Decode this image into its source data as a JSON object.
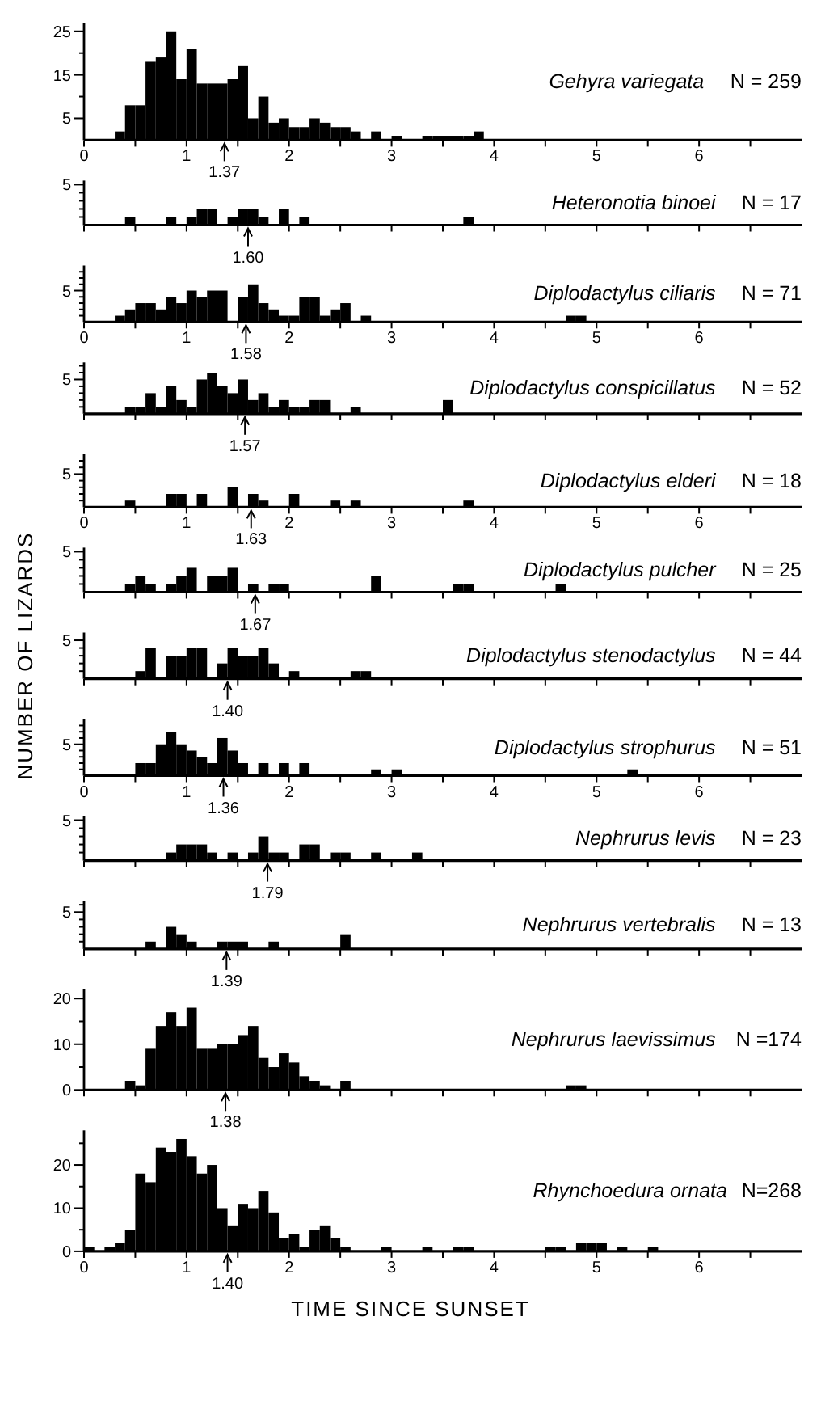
{
  "chart_data": [
    {
      "type": "histogram",
      "title": "Gehyra variegata",
      "subtitle": "N = 259",
      "color": "#000000",
      "bins": [
        0,
        0.1,
        0.2,
        0.3,
        0.4,
        0.5,
        0.6,
        0.7,
        0.8,
        0.9,
        1,
        1.1,
        1.2,
        1.3,
        1.4,
        1.5,
        1.6,
        1.7,
        1.8,
        1.9,
        2,
        2.1,
        2.2,
        2.3,
        2.4,
        2.5,
        2.6,
        2.7,
        2.8,
        2.9,
        3,
        3.1,
        3.2,
        3.3,
        3.4,
        3.5,
        3.6,
        3.7,
        3.8,
        3.9,
        4,
        4.1,
        4.2,
        4.3,
        4.4,
        4.5,
        4.6,
        4.7,
        4.8,
        4.9,
        5,
        5.1,
        5.2,
        5.3,
        5.4,
        5.5,
        5.6,
        5.7,
        5.8,
        5.9,
        6
      ],
      "values": [
        0,
        0,
        0,
        2,
        8,
        8,
        18,
        19,
        25,
        14,
        21,
        13,
        13,
        13,
        14,
        17,
        5,
        10,
        4,
        5,
        3,
        3,
        5,
        4,
        3,
        3,
        2,
        0,
        2,
        0,
        1,
        0,
        0,
        1,
        1,
        1,
        1,
        1,
        2,
        0,
        0,
        0,
        0,
        0,
        0,
        0,
        0,
        0,
        0,
        0,
        0,
        0,
        0,
        0,
        0,
        0,
        0,
        0,
        0,
        0
      ],
      "xlim": [
        0,
        7
      ],
      "xticks": [
        0,
        {
          "value": 0.5,
          "label": null
        },
        1,
        {
          "value": 1.5,
          "label": null
        },
        2,
        {
          "value": 2.5,
          "label": null
        },
        3,
        {
          "value": 3.5,
          "label": null
        },
        4,
        {
          "value": 4.5,
          "label": null
        },
        5,
        {
          "value": 5.5,
          "label": null
        },
        6,
        {
          "value": 6.5,
          "label": null
        }
      ],
      "ylim": [
        0,
        27
      ],
      "yticks": [
        5,
        {
          "value": 10,
          "label": null
        },
        15,
        {
          "value": 20,
          "label": null
        },
        25
      ],
      "annotations": [
        {
          "text": "1.37",
          "x": 1.37,
          "y": 0
        }
      ]
    },
    {
      "type": "bar",
      "title": "Heteronotia binoei",
      "subtitle": "N = 17",
      "color": "#000000",
      "x": [
        0.05,
        0.15,
        0.25,
        0.35,
        0.45,
        0.55,
        0.65,
        0.75,
        0.85,
        0.95,
        1.05,
        1.15,
        1.25,
        1.35,
        1.45,
        1.55,
        1.65,
        1.75,
        1.85,
        1.95,
        2.05,
        2.15,
        2.25,
        2.35,
        2.45,
        2.55,
        2.65,
        2.75,
        2.85,
        2.95,
        3.05,
        3.15,
        3.25,
        3.35,
        3.45,
        3.55,
        3.65,
        3.75,
        3.85,
        3.95,
        4.05,
        4.15,
        4.25,
        4.35,
        4.45,
        4.55,
        4.65,
        4.75,
        4.85,
        4.95,
        5.05,
        5.15,
        5.25,
        5.35,
        5.45,
        5.55,
        5.65,
        5.75,
        5.85,
        5.95
      ],
      "values": [
        0,
        0,
        0,
        0,
        1,
        0,
        0,
        0,
        1,
        0,
        1,
        2,
        2,
        0,
        1,
        2,
        2,
        1,
        0,
        2,
        0,
        1,
        0,
        0,
        0,
        0,
        0,
        0,
        0,
        0,
        0,
        0,
        0,
        0,
        0,
        0,
        0,
        1,
        0,
        0,
        0,
        0,
        0,
        0,
        0,
        0,
        0,
        0,
        0,
        0,
        0,
        0,
        0,
        0,
        0,
        0,
        0,
        0,
        0,
        0
      ],
      "xlim": [
        0,
        7
      ],
      "xticks": [
        0,
        {
          "value": 0.5,
          "label": null
        },
        1,
        {
          "value": 1.5,
          "label": null
        },
        2,
        {
          "value": 2.5,
          "label": null
        },
        3,
        {
          "value": 3.5,
          "label": null
        },
        4,
        {
          "value": 4.5,
          "label": null
        },
        5,
        {
          "value": 5.5,
          "label": null
        },
        6,
        {
          "value": 6.5,
          "label": null
        }
      ],
      "ylim": [
        0,
        5.5
      ],
      "yticks": [
        {
          "value": 1,
          "label": null
        },
        {
          "value": 2,
          "label": null
        },
        {
          "value": 3,
          "label": null
        },
        {
          "value": 4,
          "label": null
        },
        5
      ],
      "tick_labels": "y",
      "annotations": [
        {
          "text": "1.60",
          "x": 1.6,
          "y": 0
        }
      ]
    },
    {
      "type": "bar",
      "title": "Diplodactylus ciliaris",
      "subtitle": "N = 71",
      "color": "#000000",
      "x": [
        0.05,
        0.15,
        0.25,
        0.35,
        0.45,
        0.55,
        0.65,
        0.75,
        0.85,
        0.95,
        1.05,
        1.15,
        1.25,
        1.35,
        1.45,
        1.55,
        1.65,
        1.75,
        1.85,
        1.95,
        2.05,
        2.15,
        2.25,
        2.35,
        2.45,
        2.55,
        2.65,
        2.75,
        2.85,
        2.95,
        3.05,
        3.15,
        3.25,
        3.35,
        3.45,
        3.55,
        3.65,
        3.75,
        3.85,
        3.95,
        4.05,
        4.15,
        4.25,
        4.35,
        4.45,
        4.55,
        4.65,
        4.75,
        4.85,
        4.95,
        5.05,
        5.15,
        5.25,
        5.35,
        5.45,
        5.55,
        5.65,
        5.75,
        5.85,
        5.95
      ],
      "values": [
        0,
        0,
        0,
        1,
        2,
        3,
        3,
        2,
        4,
        3,
        5,
        4,
        5,
        5,
        0,
        4,
        6,
        3,
        2,
        1,
        1,
        4,
        4,
        1,
        2,
        3,
        0,
        1,
        0,
        0,
        0,
        0,
        0,
        0,
        0,
        0,
        0,
        0,
        0,
        0,
        0,
        0,
        0,
        0,
        0,
        0,
        0,
        1,
        1,
        0,
        0,
        0,
        0,
        0,
        0,
        0,
        0,
        0,
        0,
        0
      ],
      "xlim": [
        0,
        7
      ],
      "xticks": [
        0,
        {
          "value": 0.5,
          "label": null
        },
        1,
        {
          "value": 1.5,
          "label": null
        },
        2,
        {
          "value": 2.5,
          "label": null
        },
        3,
        {
          "value": 3.5,
          "label": null
        },
        4,
        {
          "value": 4.5,
          "label": null
        },
        5,
        {
          "value": 5.5,
          "label": null
        },
        6,
        {
          "value": 6.5,
          "label": null
        }
      ],
      "ylim": [
        0,
        9
      ],
      "yticks": [
        {
          "value": 1,
          "label": null
        },
        {
          "value": 2,
          "label": null
        },
        {
          "value": 3,
          "label": null
        },
        {
          "value": 4,
          "label": null
        },
        5,
        {
          "value": 6,
          "label": null
        },
        {
          "value": 7,
          "label": null
        },
        {
          "value": 8,
          "label": null
        }
      ],
      "annotations": [
        {
          "text": "1.58",
          "x": 1.58,
          "y": 0
        }
      ]
    },
    {
      "type": "bar",
      "title": "Diplodactylus conspicillatus",
      "subtitle": "N = 52",
      "color": "#000000",
      "x": [
        0.05,
        0.15,
        0.25,
        0.35,
        0.45,
        0.55,
        0.65,
        0.75,
        0.85,
        0.95,
        1.05,
        1.15,
        1.25,
        1.35,
        1.45,
        1.55,
        1.65,
        1.75,
        1.85,
        1.95,
        2.05,
        2.15,
        2.25,
        2.35,
        2.45,
        2.55,
        2.65,
        2.75,
        2.85,
        2.95,
        3.05,
        3.15,
        3.25,
        3.35,
        3.45,
        3.55,
        3.65,
        3.75,
        3.85,
        3.95,
        4.05,
        4.15,
        4.25,
        4.35,
        4.45,
        4.55,
        4.65,
        4.75,
        4.85,
        4.95,
        5.05,
        5.15,
        5.25,
        5.35,
        5.45,
        5.55,
        5.65,
        5.75,
        5.85,
        5.95
      ],
      "values": [
        0,
        0,
        0,
        0,
        1,
        1,
        3,
        1,
        4,
        2,
        1,
        5,
        6,
        4,
        3,
        5,
        2,
        3,
        1,
        2,
        1,
        1,
        2,
        2,
        0,
        0,
        1,
        0,
        0,
        0,
        0,
        0,
        0,
        0,
        0,
        2,
        0,
        0,
        0,
        0,
        0,
        0,
        0,
        0,
        0,
        0,
        0,
        0,
        0,
        0,
        0,
        0,
        0,
        0,
        0,
        0,
        0,
        0,
        0,
        0
      ],
      "xlim": [
        0,
        7
      ],
      "xticks": [
        0,
        {
          "value": 0.5,
          "label": null
        },
        1,
        {
          "value": 1.5,
          "label": null
        },
        2,
        {
          "value": 2.5,
          "label": null
        },
        3,
        {
          "value": 3.5,
          "label": null
        },
        4,
        {
          "value": 4.5,
          "label": null
        },
        5,
        {
          "value": 5.5,
          "label": null
        },
        6,
        {
          "value": 6.5,
          "label": null
        }
      ],
      "ylim": [
        0,
        7.5
      ],
      "yticks": [
        {
          "value": 1,
          "label": null
        },
        {
          "value": 2,
          "label": null
        },
        {
          "value": 3,
          "label": null
        },
        {
          "value": 4,
          "label": null
        },
        5,
        {
          "value": 6,
          "label": null
        },
        {
          "value": 7,
          "label": null
        }
      ],
      "tick_labels": "y",
      "annotations": [
        {
          "text": "1.57",
          "x": 1.57,
          "y": 0
        }
      ]
    },
    {
      "type": "bar",
      "title": "Diplodactylus elderi",
      "subtitle": "N = 18",
      "color": "#000000",
      "x": [
        0.05,
        0.15,
        0.25,
        0.35,
        0.45,
        0.55,
        0.65,
        0.75,
        0.85,
        0.95,
        1.05,
        1.15,
        1.25,
        1.35,
        1.45,
        1.55,
        1.65,
        1.75,
        1.85,
        1.95,
        2.05,
        2.15,
        2.25,
        2.35,
        2.45,
        2.55,
        2.65,
        2.75,
        2.85,
        2.95,
        3.05,
        3.15,
        3.25,
        3.35,
        3.45,
        3.55,
        3.65,
        3.75,
        3.85,
        3.95,
        4.05,
        4.15,
        4.25,
        4.35,
        4.45,
        4.55,
        4.65,
        4.75,
        4.85,
        4.95,
        5.05,
        5.15,
        5.25,
        5.35,
        5.45,
        5.55,
        5.65,
        5.75,
        5.85,
        5.95
      ],
      "values": [
        0,
        0,
        0,
        0,
        1,
        0,
        0,
        0,
        2,
        2,
        0,
        2,
        0,
        0,
        3,
        0,
        2,
        1,
        0,
        0,
        2,
        0,
        0,
        0,
        1,
        0,
        1,
        0,
        0,
        0,
        0,
        0,
        0,
        0,
        0,
        0,
        0,
        1,
        0,
        0,
        0,
        0,
        0,
        0,
        0,
        0,
        0,
        0,
        0,
        0,
        0,
        0,
        0,
        0,
        0,
        0,
        0,
        0,
        0,
        0
      ],
      "xlim": [
        0,
        7
      ],
      "xticks": [
        0,
        {
          "value": 0.5,
          "label": null
        },
        1,
        {
          "value": 1.5,
          "label": null
        },
        2,
        {
          "value": 2.5,
          "label": null
        },
        3,
        {
          "value": 3.5,
          "label": null
        },
        4,
        {
          "value": 4.5,
          "label": null
        },
        5,
        {
          "value": 5.5,
          "label": null
        },
        6,
        {
          "value": 6.5,
          "label": null
        }
      ],
      "ylim": [
        0,
        8
      ],
      "yticks": [
        {
          "value": 1,
          "label": null
        },
        {
          "value": 2,
          "label": null
        },
        {
          "value": 3,
          "label": null
        },
        {
          "value": 4,
          "label": null
        },
        5,
        {
          "value": 6,
          "label": null
        },
        {
          "value": 7,
          "label": null
        }
      ],
      "annotations": [
        {
          "text": "1.63",
          "x": 1.63,
          "y": 0
        }
      ]
    },
    {
      "type": "bar",
      "title": "Diplodactylus pulcher",
      "subtitle": "N = 25",
      "color": "#000000",
      "x": [
        0.05,
        0.15,
        0.25,
        0.35,
        0.45,
        0.55,
        0.65,
        0.75,
        0.85,
        0.95,
        1.05,
        1.15,
        1.25,
        1.35,
        1.45,
        1.55,
        1.65,
        1.75,
        1.85,
        1.95,
        2.05,
        2.15,
        2.25,
        2.35,
        2.45,
        2.55,
        2.65,
        2.75,
        2.85,
        2.95,
        3.05,
        3.15,
        3.25,
        3.35,
        3.45,
        3.55,
        3.65,
        3.75,
        3.85,
        3.95,
        4.05,
        4.15,
        4.25,
        4.35,
        4.45,
        4.55,
        4.65,
        4.75,
        4.85,
        4.95,
        5.05,
        5.15,
        5.25,
        5.35,
        5.45,
        5.55,
        5.65,
        5.75,
        5.85,
        5.95
      ],
      "values": [
        0,
        0,
        0,
        0,
        1,
        2,
        1,
        0,
        1,
        2,
        3,
        0,
        2,
        2,
        3,
        0,
        1,
        0,
        1,
        1,
        0,
        0,
        0,
        0,
        0,
        0,
        0,
        0,
        2,
        0,
        0,
        0,
        0,
        0,
        0,
        0,
        1,
        1,
        0,
        0,
        0,
        0,
        0,
        0,
        0,
        0,
        1,
        0,
        0,
        0,
        0,
        0,
        0,
        0,
        0,
        0,
        0,
        0,
        0,
        0
      ],
      "xlim": [
        0,
        7
      ],
      "xticks": [
        0,
        {
          "value": 0.5,
          "label": null
        },
        1,
        {
          "value": 1.5,
          "label": null
        },
        2,
        {
          "value": 2.5,
          "label": null
        },
        3,
        {
          "value": 3.5,
          "label": null
        },
        4,
        {
          "value": 4.5,
          "label": null
        },
        5,
        {
          "value": 5.5,
          "label": null
        },
        6,
        {
          "value": 6.5,
          "label": null
        }
      ],
      "ylim": [
        0,
        5.5
      ],
      "yticks": [
        {
          "value": 1,
          "label": null
        },
        {
          "value": 2,
          "label": null
        },
        {
          "value": 3,
          "label": null
        },
        {
          "value": 4,
          "label": null
        },
        5
      ],
      "tick_labels": "y",
      "annotations": [
        {
          "text": "1.67",
          "x": 1.67,
          "y": 0
        }
      ]
    },
    {
      "type": "bar",
      "title": "Diplodactylus stenodactylus",
      "subtitle": "N = 44",
      "ylabel": "NUMBER OF LIZARDS",
      "color": "#000000",
      "x": [
        0.05,
        0.15,
        0.25,
        0.35,
        0.45,
        0.55,
        0.65,
        0.75,
        0.85,
        0.95,
        1.05,
        1.15,
        1.25,
        1.35,
        1.45,
        1.55,
        1.65,
        1.75,
        1.85,
        1.95,
        2.05,
        2.15,
        2.25,
        2.35,
        2.45,
        2.55,
        2.65,
        2.75,
        2.85,
        2.95,
        3.05,
        3.15,
        3.25,
        3.35,
        3.45,
        3.55,
        3.65,
        3.75,
        3.85,
        3.95,
        4.05,
        4.15,
        4.25,
        4.35,
        4.45,
        4.55,
        4.65,
        4.75,
        4.85,
        4.95,
        5.05,
        5.15,
        5.25,
        5.35,
        5.45,
        5.55,
        5.65,
        5.75,
        5.85,
        5.95
      ],
      "values": [
        0,
        0,
        0,
        0,
        0,
        1,
        4,
        0,
        3,
        3,
        4,
        4,
        0,
        2,
        4,
        3,
        3,
        4,
        2,
        0,
        1,
        0,
        0,
        0,
        0,
        0,
        1,
        1,
        0,
        0,
        0,
        0,
        0,
        0,
        0,
        0,
        0,
        0,
        0,
        0,
        0,
        0,
        0,
        0,
        0,
        0,
        0,
        0,
        0,
        0,
        0,
        0,
        0,
        0,
        0,
        0,
        0,
        0,
        0,
        0
      ],
      "xlim": [
        0,
        7
      ],
      "xticks": [
        0,
        {
          "value": 0.5,
          "label": null
        },
        1,
        {
          "value": 1.5,
          "label": null
        },
        2,
        {
          "value": 2.5,
          "label": null
        },
        3,
        {
          "value": 3.5,
          "label": null
        },
        4,
        {
          "value": 4.5,
          "label": null
        },
        5,
        {
          "value": 5.5,
          "label": null
        },
        6,
        {
          "value": 6.5,
          "label": null
        }
      ],
      "ylim": [
        0,
        6
      ],
      "yticks": [
        {
          "value": 1,
          "label": null
        },
        {
          "value": 2,
          "label": null
        },
        {
          "value": 3,
          "label": null
        },
        {
          "value": 4,
          "label": null
        },
        5
      ],
      "tick_labels": "y",
      "annotations": [
        {
          "text": "1.40",
          "x": 1.4,
          "y": 0
        }
      ]
    },
    {
      "type": "bar",
      "title": "Diplodactylus strophurus",
      "subtitle": "N = 51",
      "color": "#000000",
      "x": [
        0.05,
        0.15,
        0.25,
        0.35,
        0.45,
        0.55,
        0.65,
        0.75,
        0.85,
        0.95,
        1.05,
        1.15,
        1.25,
        1.35,
        1.45,
        1.55,
        1.65,
        1.75,
        1.85,
        1.95,
        2.05,
        2.15,
        2.25,
        2.35,
        2.45,
        2.55,
        2.65,
        2.75,
        2.85,
        2.95,
        3.05,
        3.15,
        3.25,
        3.35,
        3.45,
        3.55,
        3.65,
        3.75,
        3.85,
        3.95,
        4.05,
        4.15,
        4.25,
        4.35,
        4.45,
        4.55,
        4.65,
        4.75,
        4.85,
        4.95,
        5.05,
        5.15,
        5.25,
        5.35,
        5.45,
        5.55,
        5.65,
        5.75,
        5.85,
        5.95
      ],
      "values": [
        0,
        0,
        0,
        0,
        0,
        2,
        2,
        5,
        7,
        5,
        4,
        3,
        2,
        6,
        4,
        2,
        0,
        2,
        0,
        2,
        0,
        2,
        0,
        0,
        0,
        0,
        0,
        0,
        1,
        0,
        1,
        0,
        0,
        0,
        0,
        0,
        0,
        0,
        0,
        0,
        0,
        0,
        0,
        0,
        0,
        0,
        0,
        0,
        0,
        0,
        0,
        0,
        0,
        1,
        0,
        0,
        0,
        0,
        0,
        0
      ],
      "xlim": [
        0,
        7
      ],
      "xticks": [
        0,
        {
          "value": 0.5,
          "label": null
        },
        1,
        {
          "value": 1.5,
          "label": null
        },
        2,
        {
          "value": 2.5,
          "label": null
        },
        3,
        {
          "value": 3.5,
          "label": null
        },
        4,
        {
          "value": 4.5,
          "label": null
        },
        5,
        {
          "value": 5.5,
          "label": null
        },
        6,
        {
          "value": 6.5,
          "label": null
        }
      ],
      "ylim": [
        0,
        9
      ],
      "yticks": [
        {
          "value": 1,
          "label": null
        },
        {
          "value": 2,
          "label": null
        },
        {
          "value": 3,
          "label": null
        },
        {
          "value": 4,
          "label": null
        },
        5,
        {
          "value": 6,
          "label": null
        },
        {
          "value": 7,
          "label": null
        },
        {
          "value": 8,
          "label": null
        }
      ],
      "annotations": [
        {
          "text": "1.36",
          "x": 1.36,
          "y": 0
        }
      ]
    },
    {
      "type": "bar",
      "title": "Nephrurus levis",
      "subtitle": "N = 23",
      "color": "#000000",
      "x": [
        0.05,
        0.15,
        0.25,
        0.35,
        0.45,
        0.55,
        0.65,
        0.75,
        0.85,
        0.95,
        1.05,
        1.15,
        1.25,
        1.35,
        1.45,
        1.55,
        1.65,
        1.75,
        1.85,
        1.95,
        2.05,
        2.15,
        2.25,
        2.35,
        2.45,
        2.55,
        2.65,
        2.75,
        2.85,
        2.95,
        3.05,
        3.15,
        3.25,
        3.35,
        3.45,
        3.55,
        3.65,
        3.75,
        3.85,
        3.95,
        4.05,
        4.15,
        4.25,
        4.35,
        4.45,
        4.55,
        4.65,
        4.75,
        4.85,
        4.95,
        5.05,
        5.15,
        5.25,
        5.35,
        5.45,
        5.55,
        5.65,
        5.75,
        5.85,
        5.95
      ],
      "values": [
        0,
        0,
        0,
        0,
        0,
        0,
        0,
        0,
        1,
        2,
        2,
        2,
        1,
        0,
        1,
        0,
        1,
        3,
        1,
        1,
        0,
        2,
        2,
        0,
        1,
        1,
        0,
        0,
        1,
        0,
        0,
        0,
        1,
        0,
        0,
        0,
        0,
        0,
        0,
        0,
        0,
        0,
        0,
        0,
        0,
        0,
        0,
        0,
        0,
        0,
        0,
        0,
        0,
        0,
        0,
        0,
        0,
        0,
        0,
        0
      ],
      "xlim": [
        0,
        7
      ],
      "xticks": [
        0,
        {
          "value": 0.5,
          "label": null
        },
        1,
        {
          "value": 1.5,
          "label": null
        },
        2,
        {
          "value": 2.5,
          "label": null
        },
        3,
        {
          "value": 3.5,
          "label": null
        },
        4,
        {
          "value": 4.5,
          "label": null
        },
        5,
        {
          "value": 5.5,
          "label": null
        },
        6,
        {
          "value": 6.5,
          "label": null
        }
      ],
      "ylim": [
        0,
        5.5
      ],
      "yticks": [
        {
          "value": 1,
          "label": null
        },
        {
          "value": 2,
          "label": null
        },
        {
          "value": 3,
          "label": null
        },
        {
          "value": 4,
          "label": null
        },
        5
      ],
      "tick_labels": "y",
      "annotations": [
        {
          "text": "1.79",
          "x": 1.79,
          "y": 0
        }
      ]
    },
    {
      "type": "bar",
      "title": "Nephrurus vertebralis",
      "subtitle": "N = 13",
      "color": "#000000",
      "x": [
        0.05,
        0.15,
        0.25,
        0.35,
        0.45,
        0.55,
        0.65,
        0.75,
        0.85,
        0.95,
        1.05,
        1.15,
        1.25,
        1.35,
        1.45,
        1.55,
        1.65,
        1.75,
        1.85,
        1.95,
        2.05,
        2.15,
        2.25,
        2.35,
        2.45,
        2.55,
        2.65,
        2.75,
        2.85,
        2.95,
        3.05,
        3.15,
        3.25,
        3.35,
        3.45,
        3.55,
        3.65,
        3.75,
        3.85,
        3.95,
        4.05,
        4.15,
        4.25,
        4.35,
        4.45,
        4.55,
        4.65,
        4.75,
        4.85,
        4.95,
        5.05,
        5.15,
        5.25,
        5.35,
        5.45,
        5.55,
        5.65,
        5.75,
        5.85,
        5.95
      ],
      "values": [
        0,
        0,
        0,
        0,
        0,
        0,
        1,
        0,
        3,
        2,
        1,
        0,
        0,
        1,
        1,
        1,
        0,
        0,
        1,
        0,
        0,
        0,
        0,
        0,
        0,
        2,
        0,
        0,
        0,
        0,
        0,
        0,
        0,
        0,
        0,
        0,
        0,
        0,
        0,
        0,
        0,
        0,
        0,
        0,
        0,
        0,
        0,
        0,
        0,
        0,
        0,
        0,
        0,
        0,
        0,
        0,
        0,
        0,
        0,
        0
      ],
      "xlim": [
        0,
        7
      ],
      "xticks": [
        0,
        {
          "value": 0.5,
          "label": null
        },
        1,
        {
          "value": 1.5,
          "label": null
        },
        2,
        {
          "value": 2.5,
          "label": null
        },
        3,
        {
          "value": 3.5,
          "label": null
        },
        4,
        {
          "value": 4.5,
          "label": null
        },
        5,
        {
          "value": 5.5,
          "label": null
        },
        6,
        {
          "value": 6.5,
          "label": null
        }
      ],
      "ylim": [
        0,
        6.5
      ],
      "yticks": [
        {
          "value": 1,
          "label": null
        },
        {
          "value": 2,
          "label": null
        },
        {
          "value": 3,
          "label": null
        },
        {
          "value": 4,
          "label": null
        },
        5,
        {
          "value": 6,
          "label": null
        }
      ],
      "tick_labels": "y",
      "annotations": [
        {
          "text": "1.39",
          "x": 1.39,
          "y": 0
        }
      ]
    },
    {
      "type": "histogram",
      "title": "Nephrurus laevissimus",
      "subtitle": "N =174",
      "color": "#000000",
      "bins": [
        0,
        0.1,
        0.2,
        0.3,
        0.4,
        0.5,
        0.6,
        0.7,
        0.8,
        0.9,
        1,
        1.1,
        1.2,
        1.3,
        1.4,
        1.5,
        1.6,
        1.7,
        1.8,
        1.9,
        2,
        2.1,
        2.2,
        2.3,
        2.4,
        2.5,
        2.6,
        2.7,
        2.8,
        2.9,
        3,
        3.1,
        3.2,
        3.3,
        3.4,
        3.5,
        3.6,
        3.7,
        3.8,
        3.9,
        4,
        4.1,
        4.2,
        4.3,
        4.4,
        4.5,
        4.6,
        4.7,
        4.8,
        4.9,
        5,
        5.1,
        5.2,
        5.3,
        5.4,
        5.5,
        5.6,
        5.7,
        5.8,
        5.9,
        6
      ],
      "values": [
        0,
        0,
        0,
        0,
        2,
        1,
        9,
        14,
        17,
        14,
        18,
        9,
        9,
        10,
        10,
        12,
        14,
        7,
        5,
        8,
        6,
        3,
        2,
        1,
        0,
        2,
        0,
        0,
        0,
        0,
        0,
        0,
        0,
        0,
        0,
        0,
        0,
        0,
        0,
        0,
        0,
        0,
        0,
        0,
        0,
        0,
        0,
        1,
        1,
        0,
        0,
        0,
        0,
        0,
        0,
        0,
        0,
        0,
        0,
        0
      ],
      "xlim": [
        0,
        7
      ],
      "xticks": [
        0,
        {
          "value": 0.5,
          "label": null
        },
        1,
        {
          "value": 1.5,
          "label": null
        },
        2,
        {
          "value": 2.5,
          "label": null
        },
        3,
        {
          "value": 3.5,
          "label": null
        },
        4,
        {
          "value": 4.5,
          "label": null
        },
        5,
        {
          "value": 5.5,
          "label": null
        },
        6,
        {
          "value": 6.5,
          "label": null
        }
      ],
      "ylim": [
        0,
        22
      ],
      "yticks": [
        0,
        {
          "value": 5,
          "label": null
        },
        10,
        {
          "value": 15,
          "label": null
        },
        20
      ],
      "tick_labels": "y",
      "annotations": [
        {
          "text": "1.38",
          "x": 1.38,
          "y": 0
        }
      ]
    },
    {
      "type": "histogram",
      "title": "Rhynchoedura ornata",
      "subtitle": "N=268",
      "xlabel": "TIME SINCE SUNSET",
      "color": "#000000",
      "bins": [
        0,
        0.1,
        0.2,
        0.3,
        0.4,
        0.5,
        0.6,
        0.7,
        0.8,
        0.9,
        1,
        1.1,
        1.2,
        1.3,
        1.4,
        1.5,
        1.6,
        1.7,
        1.8,
        1.9,
        2,
        2.1,
        2.2,
        2.3,
        2.4,
        2.5,
        2.6,
        2.7,
        2.8,
        2.9,
        3,
        3.1,
        3.2,
        3.3,
        3.4,
        3.5,
        3.6,
        3.7,
        3.8,
        3.9,
        4,
        4.1,
        4.2,
        4.3,
        4.4,
        4.5,
        4.6,
        4.7,
        4.8,
        4.9,
        5,
        5.1,
        5.2,
        5.3,
        5.4,
        5.5,
        5.6,
        5.7,
        5.8,
        5.9,
        6
      ],
      "values": [
        1,
        0,
        1,
        2,
        5,
        18,
        16,
        24,
        23,
        26,
        22,
        18,
        20,
        10,
        6,
        11,
        10,
        14,
        9,
        3,
        4,
        1,
        5,
        6,
        3,
        1,
        0,
        0,
        0,
        1,
        0,
        0,
        0,
        1,
        0,
        0,
        1,
        1,
        0,
        0,
        0,
        0,
        0,
        0,
        0,
        1,
        1,
        0,
        2,
        2,
        2,
        0,
        1,
        0,
        0,
        1,
        0,
        0,
        0,
        0
      ],
      "xlim": [
        0,
        7
      ],
      "xticks": [
        0,
        {
          "value": 0.5,
          "label": null
        },
        1,
        {
          "value": 1.5,
          "label": null
        },
        2,
        {
          "value": 2.5,
          "label": null
        },
        3,
        {
          "value": 3.5,
          "label": null
        },
        4,
        {
          "value": 4.5,
          "label": null
        },
        5,
        {
          "value": 5.5,
          "label": null
        },
        6,
        {
          "value": 6.5,
          "label": null
        }
      ],
      "ylim": [
        0,
        28
      ],
      "yticks": [
        0,
        {
          "value": 5,
          "label": null
        },
        10,
        {
          "value": 15,
          "label": null
        },
        20,
        {
          "value": 25,
          "label": null
        }
      ],
      "annotations": [
        {
          "text": "1.40",
          "x": 1.4,
          "y": 0
        }
      ]
    }
  ]
}
